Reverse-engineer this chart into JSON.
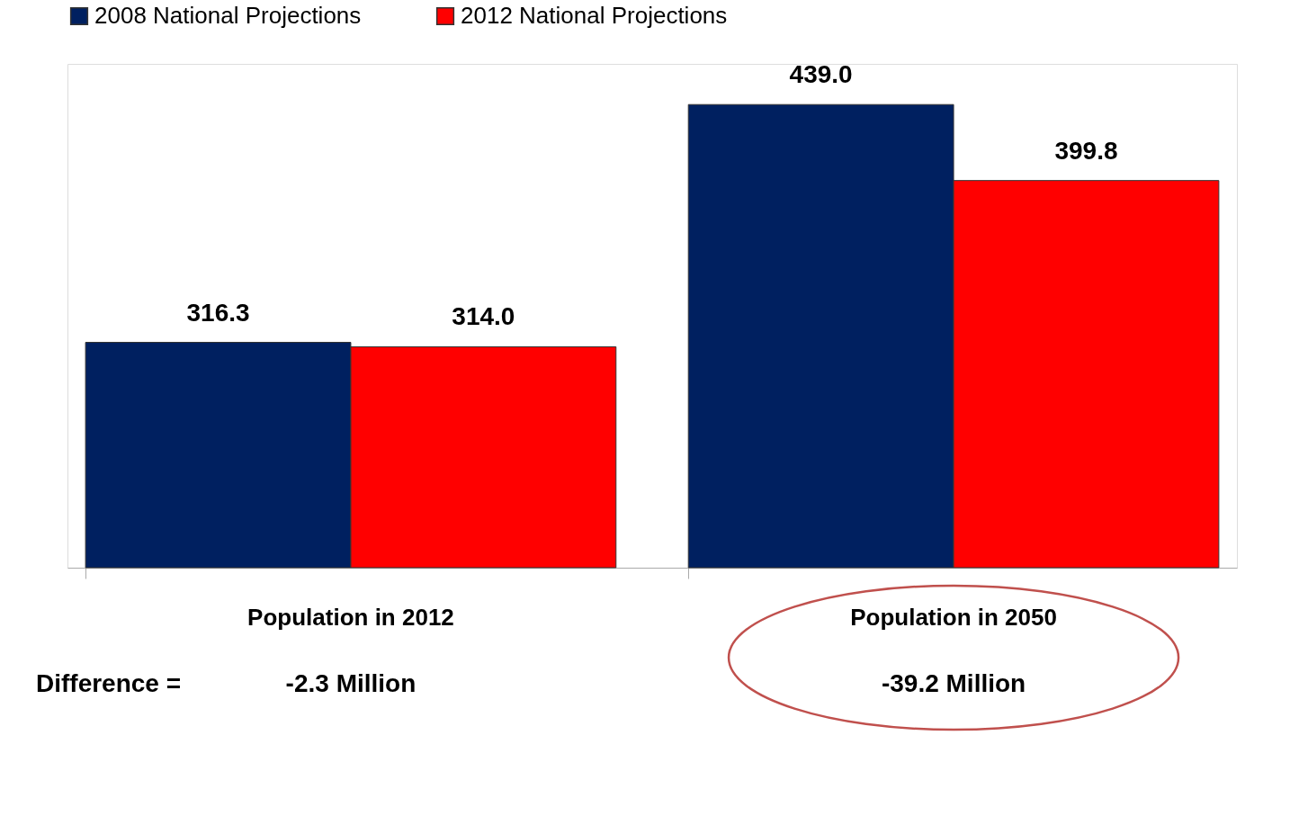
{
  "chart_data": {
    "type": "bar",
    "categories": [
      "Population in 2012",
      "Population in 2050"
    ],
    "series": [
      {
        "name": "2008 National Projections",
        "color": "#002060",
        "values": [
          316.3,
          439.0
        ],
        "value_labels": [
          "316.3",
          "439.0"
        ]
      },
      {
        "name": "2012 National Projections",
        "color": "#ff0000",
        "values": [
          314.0,
          399.8
        ],
        "value_labels": [
          "314.0",
          "399.8"
        ]
      }
    ],
    "ylim": [
      200,
      460
    ],
    "tick_labels": "x",
    "legend": "top",
    "annotations": [
      "Difference =",
      "-2.3 Million",
      "-39.2 Million"
    ]
  }
}
